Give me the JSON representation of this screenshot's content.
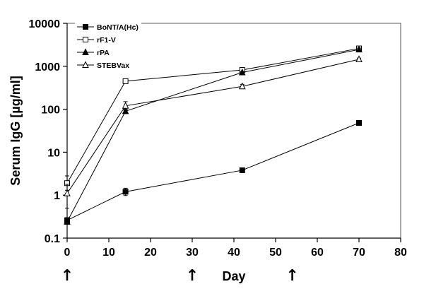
{
  "chart_data": {
    "type": "line",
    "xlabel": "Day",
    "ylabel": "Serum IgG [µg/ml]",
    "xlim": [
      0,
      80
    ],
    "ylim": [
      0.1,
      10000
    ],
    "yscale": "log",
    "x_ticks": [
      0,
      10,
      20,
      30,
      40,
      50,
      60,
      70,
      80
    ],
    "x_tick_labels": [
      "0",
      "10",
      "20",
      "30",
      "40",
      "50",
      "60",
      "70",
      "80"
    ],
    "y_ticks": [
      0.1,
      1,
      10,
      100,
      1000,
      10000
    ],
    "y_tick_labels": [
      "0.1",
      "1",
      "10",
      "100",
      "1000",
      "10000"
    ],
    "grid": false,
    "legend_position": "top-left",
    "immunization_days": [
      0,
      30,
      54
    ],
    "immunization_marker_glyph": "↑",
    "series": [
      {
        "name": "BoNT/A(Hc)",
        "marker": "filled-square",
        "x": [
          0,
          14,
          42,
          70
        ],
        "y": [
          0.26,
          1.2,
          3.8,
          48
        ],
        "err_low": [
          0.22,
          0.98,
          3.5,
          45
        ],
        "err_high": [
          0.3,
          1.45,
          4.1,
          51
        ]
      },
      {
        "name": "rF1-V",
        "marker": "open-square",
        "x": [
          0,
          14,
          42,
          70
        ],
        "y": [
          1.9,
          450,
          820,
          2600
        ],
        "err_low": [
          1.3,
          420,
          780,
          2400
        ],
        "err_high": [
          2.8,
          480,
          860,
          2800
        ]
      },
      {
        "name": "rPA",
        "marker": "filled-triangle",
        "x": [
          0,
          14,
          42,
          70
        ],
        "y": [
          0.24,
          90,
          720,
          2450
        ],
        "err_low": [
          0.21,
          80,
          690,
          2250
        ],
        "err_high": [
          0.27,
          100,
          750,
          2650
        ]
      },
      {
        "name": "STEBVax",
        "marker": "open-triangle",
        "x": [
          0,
          14,
          42,
          70
        ],
        "y": [
          1.1,
          120,
          340,
          1450
        ],
        "err_low": [
          0.5,
          95,
          300,
          1350
        ],
        "err_high": [
          1.8,
          150,
          380,
          1550
        ]
      }
    ]
  }
}
